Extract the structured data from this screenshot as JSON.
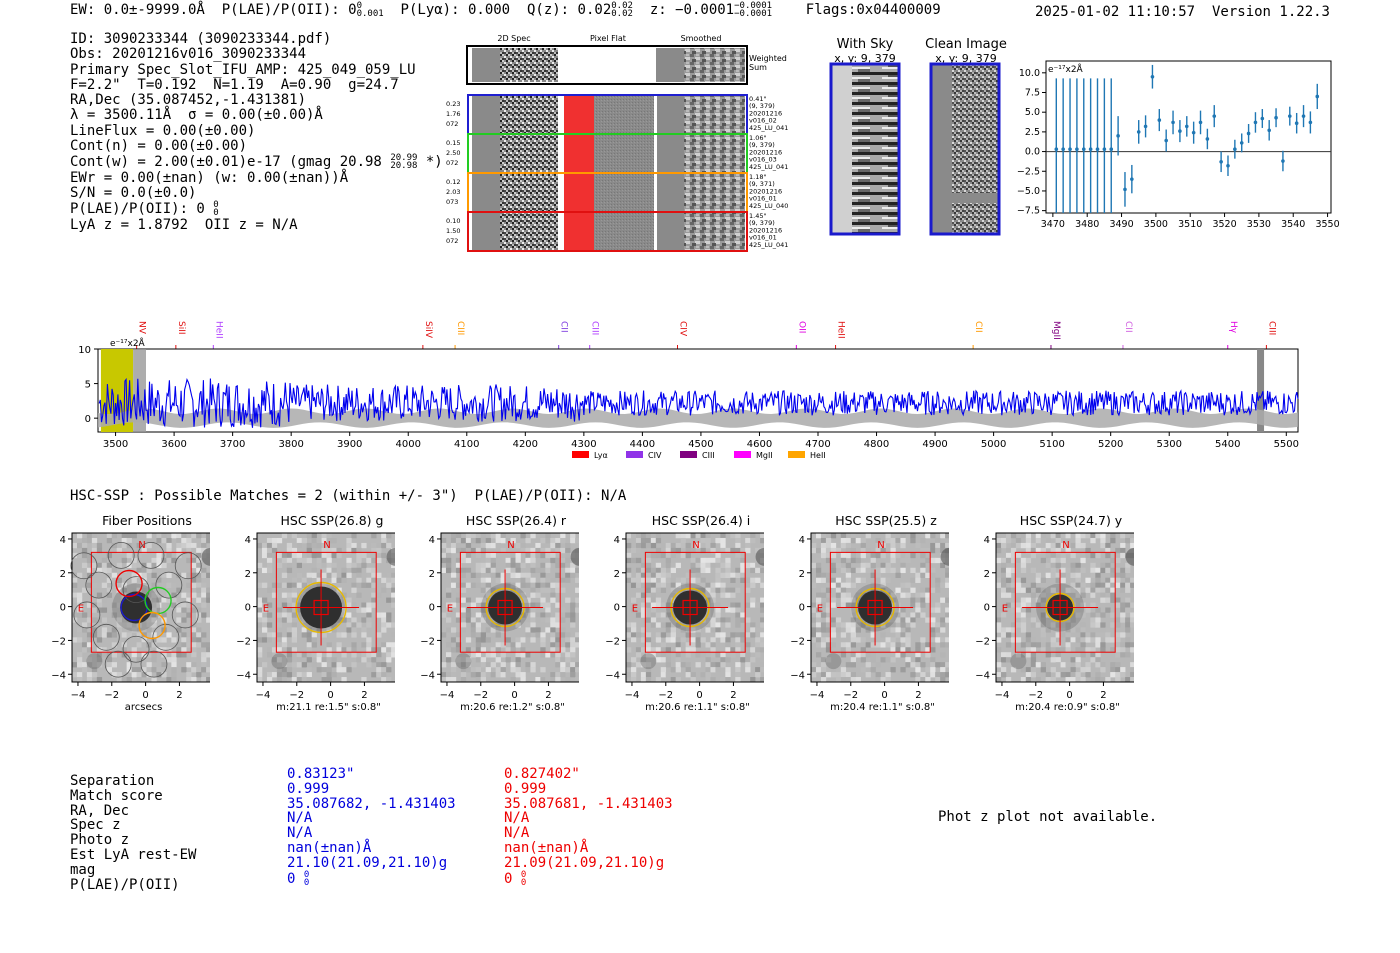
{
  "header": {
    "ew": "EW: 0.0±-9999.0Å",
    "plae_label": "P(LAE)/P(OII): 0",
    "plae_sup": "0",
    "plae_sub": "0.001",
    "plya": "P(Lyα): 0.000",
    "qz_label": "Q(z): 0.02",
    "qz_sup": "0.02",
    "qz_sub": "0.02",
    "z_label": "z: −0.0001",
    "z_sup": "−0.0001",
    "z_sub": "−0.0001",
    "flags": "Flags:0x04400009",
    "datetime": "2025-01-02 11:10:57",
    "version": "Version 1.22.3"
  },
  "info": {
    "id": "ID: 3090233344 (3090233344.pdf)",
    "obs": "Obs: 20201216v016_3090233344",
    "primary": "Primary Spec_Slot_IFU_AMP: 425_049_059_LU",
    "params": "F=2.2\"  T=0.192  N=1.19  A=0.90  g=24.7",
    "radec": "RA,Dec (35.087452,-1.431381)",
    "lambda": "λ = 3500.11Å  σ = 0.00(±0.00)Å",
    "lineflux": "LineFlux = 0.00(±0.00)",
    "contn": "Cont(n) = 0.00(±0.00)",
    "contw": "Cont(w) = 2.00(±0.01)e-17 (gmag 20.98",
    "contw_sup": "20.99",
    "contw_sub": "20.98",
    "contw_end": " *)",
    "ewr": "EWr = 0.00(±nan) (w: 0.00(±nan))Å",
    "sn": "S/N = 0.0(±0.0)",
    "plae": "P(LAE)/P(OII): 0",
    "plae_sup": "0",
    "plae_sub": "0",
    "lya": "LyA z = 1.8792  OII z = N/A"
  },
  "cutouts": {
    "col_headers": [
      "2D Spec",
      "Pixel Flat",
      "Smoothed"
    ],
    "weighted_sum": [
      "Weighted",
      "Sum"
    ],
    "rows": [
      {
        "left": [
          "0.23",
          "1.76",
          "072"
        ],
        "right": [
          "0.41\"",
          "(9, 379)",
          "20201216",
          "v016_02",
          "425_LU_041"
        ],
        "color": "#1f1fd0"
      },
      {
        "left": [
          "0.15",
          "2.50",
          "072"
        ],
        "right": [
          "1.06\"",
          "(9, 379)",
          "20201216",
          "v016_03",
          "425_LU_041"
        ],
        "color": "#22cc22"
      },
      {
        "left": [
          "0.12",
          "2.03",
          "073"
        ],
        "right": [
          "1.18\"",
          "(9, 371)",
          "20201216",
          "v016_01",
          "425_LU_040"
        ],
        "color": "#ff9900"
      },
      {
        "left": [
          "0.10",
          "1.50",
          "072"
        ],
        "right": [
          "1.45\"",
          "(9, 379)",
          "20201216",
          "v016_01",
          "425_LU_041"
        ],
        "color": "#e01010"
      }
    ]
  },
  "sky_panels": [
    {
      "title": "With Sky",
      "coords": "x, y: 9, 379"
    },
    {
      "title": "Clean Image",
      "coords": "x, y: 9, 379"
    }
  ],
  "small_spectrum": {
    "units": "e⁻¹⁷x2Å",
    "x_ticks": [
      "3470",
      "3480",
      "3490",
      "3500",
      "3510",
      "3520",
      "3530",
      "3540",
      "3550"
    ],
    "y_ticks": [
      "10.0",
      "7.5",
      "5.0",
      "2.5",
      "0.0",
      "−2.5",
      "−5.0",
      "−7.5"
    ]
  },
  "chart_data": [
    {
      "type": "scatter",
      "title": "",
      "xlabel": "",
      "ylabel": "e-17x2Å",
      "xlim": [
        3468,
        3551
      ],
      "ylim": [
        -7.8,
        11.5
      ],
      "x": [
        3471,
        3473,
        3475,
        3477,
        3479,
        3481,
        3483,
        3485,
        3487,
        3489,
        3491,
        3493,
        3495,
        3497,
        3499,
        3501,
        3503,
        3505,
        3507,
        3509,
        3511,
        3513,
        3515,
        3517,
        3519,
        3521,
        3523,
        3525,
        3527,
        3529,
        3531,
        3533,
        3535,
        3537,
        3539,
        3541,
        3543,
        3545,
        3547
      ],
      "y": [
        0.3,
        0.3,
        0.3,
        0.3,
        0.3,
        0.3,
        0.3,
        0.3,
        0.3,
        2.0,
        -4.8,
        -3.5,
        2.5,
        3.2,
        9.5,
        4.0,
        1.4,
        3.7,
        2.6,
        3.2,
        2.4,
        3.7,
        1.6,
        4.5,
        -1.3,
        -1.8,
        0.3,
        1.1,
        2.3,
        3.7,
        4.2,
        2.7,
        4.3,
        -1.2,
        4.5,
        3.6,
        4.5,
        3.7,
        7.0
      ],
      "yerr": [
        9,
        9,
        9,
        9,
        9,
        9,
        9,
        9,
        9,
        2.5,
        2.2,
        1.8,
        1.5,
        1.4,
        1.5,
        1.4,
        1.4,
        1.5,
        1.4,
        1.3,
        1.4,
        1.5,
        1.3,
        1.4,
        1.3,
        1.3,
        1.2,
        1.2,
        1.2,
        1.3,
        1.2,
        1.3,
        1.2,
        1.3,
        1.2,
        1.3,
        1.4,
        1.4,
        1.6
      ]
    },
    {
      "type": "line",
      "title": "",
      "units": "e⁻¹⁷x2Å",
      "xlim": [
        3470,
        5520
      ],
      "ylim": [
        -2,
        10
      ],
      "x_ticks": [
        "3500",
        "3600",
        "3700",
        "3800",
        "3900",
        "4000",
        "4100",
        "4200",
        "4300",
        "4400",
        "4500",
        "4600",
        "4700",
        "4800",
        "4900",
        "5000",
        "5100",
        "5200",
        "5300",
        "5400",
        "5500"
      ],
      "y_ticks": [
        "10",
        "5",
        "0"
      ],
      "series": [
        {
          "name": "spectrum",
          "color": "#0000ee"
        }
      ],
      "line_markers": [
        {
          "name": "NV",
          "x": 3536,
          "color": "#e01010"
        },
        {
          "name": "SiII",
          "x": 3603,
          "color": "#e01010"
        },
        {
          "name": "HeII",
          "x": 3667,
          "color": "#b040ff"
        },
        {
          "name": "SiIV",
          "x": 4025,
          "color": "#e01010"
        },
        {
          "name": "CIII",
          "x": 4080,
          "color": "#ff9900"
        },
        {
          "name": "CII",
          "x": 4257,
          "color": "#8040e0"
        },
        {
          "name": "CIII",
          "x": 4310,
          "color": "#b040ff"
        },
        {
          "name": "CIV",
          "x": 4460,
          "color": "#e01010"
        },
        {
          "name": "OII",
          "x": 4663,
          "color": "#e000e0"
        },
        {
          "name": "HeII",
          "x": 4730,
          "color": "#e01010"
        },
        {
          "name": "CII",
          "x": 4965,
          "color": "#ff9900"
        },
        {
          "name": "MgII",
          "x": 5098,
          "color": "#800080"
        },
        {
          "name": "CII",
          "x": 5221,
          "color": "#d060e0"
        },
        {
          "name": "Hγ",
          "x": 5400,
          "color": "#e000e0"
        },
        {
          "name": "CIII",
          "x": 5466,
          "color": "#e01010"
        }
      ],
      "legend": [
        {
          "label": "Lyα",
          "color": "#ff0000"
        },
        {
          "label": "CIV",
          "color": "#9033e8"
        },
        {
          "label": "CIII",
          "color": "#800080"
        },
        {
          "label": "MgII",
          "color": "#ff00ff"
        },
        {
          "label": "HeII",
          "color": "#ffa500"
        }
      ]
    }
  ],
  "hsc": {
    "title": "HSC-SSP : Possible Matches = 2 (within +/- 3\")  P(LAE)/P(OII): N/A",
    "panels": [
      {
        "title": "Fiber Positions",
        "caption": "arcsecs",
        "ring": "none"
      },
      {
        "title": "HSC SSP(26.8) g",
        "caption": "m:21.1  re:1.5\"  s:0.8\"",
        "ring": "large"
      },
      {
        "title": "HSC SSP(26.4) r",
        "caption": "m:20.6  re:1.2\"  s:0.8\"",
        "ring": "mid"
      },
      {
        "title": "HSC SSP(26.4) i",
        "caption": "m:20.6  re:1.1\"  s:0.8\"",
        "ring": "mid"
      },
      {
        "title": "HSC SSP(25.5) z",
        "caption": "m:20.4  re:1.1\"  s:0.8\"",
        "ring": "mid"
      },
      {
        "title": "HSC SSP(24.7) y",
        "caption": "m:20.4  re:0.9\"  s:0.8\"",
        "ring": "small"
      }
    ],
    "ticks": [
      "4",
      "2",
      "0",
      "−2",
      "−4"
    ],
    "xticks": [
      "−4",
      "−2",
      "0",
      "2",
      "4"
    ],
    "north": "N",
    "east": "E"
  },
  "table": {
    "labels": [
      "Separation",
      "Match score",
      "RA, Dec",
      "Spec z",
      "Photo z",
      "Est LyA rest-EW",
      "mag",
      "P(LAE)/P(OII)"
    ],
    "blue": [
      "0.83123\"",
      "0.999",
      "35.087682, -1.431403",
      "N/A",
      "N/A",
      "nan(±nan)Å",
      "21.10(21.09,21.10)g",
      "0"
    ],
    "red": [
      "0.827402\"",
      "0.999",
      "35.087681, -1.431403",
      "N/A",
      "N/A",
      "nan(±nan)Å",
      "21.09(21.09,21.10)g",
      "0"
    ],
    "plae_sup": "0",
    "plae_sub": "0",
    "blue_color": "#0000dd",
    "red_color": "#ee0000"
  },
  "photz_note": "Phot z plot not available."
}
